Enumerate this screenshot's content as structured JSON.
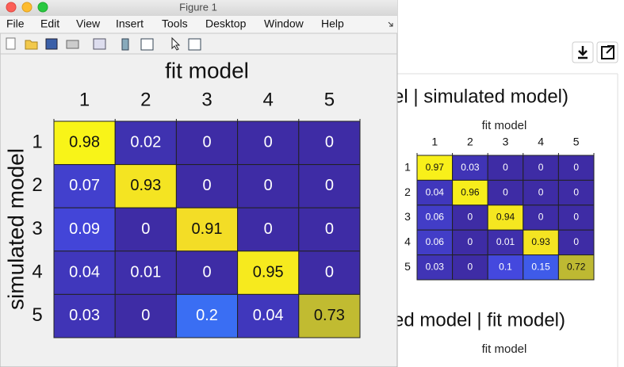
{
  "window": {
    "title": "Figure 1",
    "menu": [
      "File",
      "Edit",
      "View",
      "Insert",
      "Tools",
      "Desktop",
      "Window",
      "Help"
    ]
  },
  "figure": {
    "x_label": "fit model",
    "y_label": "simulated model",
    "columns": [
      "1",
      "2",
      "3",
      "4",
      "5"
    ],
    "rows": [
      "1",
      "2",
      "3",
      "4",
      "5"
    ],
    "cells": [
      [
        0.98,
        0.02,
        0,
        0,
        0
      ],
      [
        0.07,
        0.93,
        0,
        0,
        0
      ],
      [
        0.09,
        0,
        0.91,
        0,
        0
      ],
      [
        0.04,
        0.01,
        0,
        0.95,
        0
      ],
      [
        0.03,
        0,
        0.2,
        0.04,
        0.73
      ]
    ]
  },
  "background": {
    "title": "el | simulated model)",
    "second_title": "ed model | fit model)",
    "x_label": "fit model",
    "second_x_label": "fit model",
    "columns": [
      "1",
      "2",
      "3",
      "4",
      "5"
    ],
    "rows": [
      "1",
      "2",
      "3",
      "4",
      "5"
    ],
    "cells": [
      [
        0.97,
        0.03,
        0,
        0,
        0
      ],
      [
        0.04,
        0.96,
        0,
        0,
        0
      ],
      [
        0.06,
        0,
        0.94,
        0,
        0
      ],
      [
        0.06,
        0,
        0.01,
        0.93,
        0
      ],
      [
        0.03,
        0,
        0.1,
        0.15,
        0.72
      ]
    ]
  }
}
